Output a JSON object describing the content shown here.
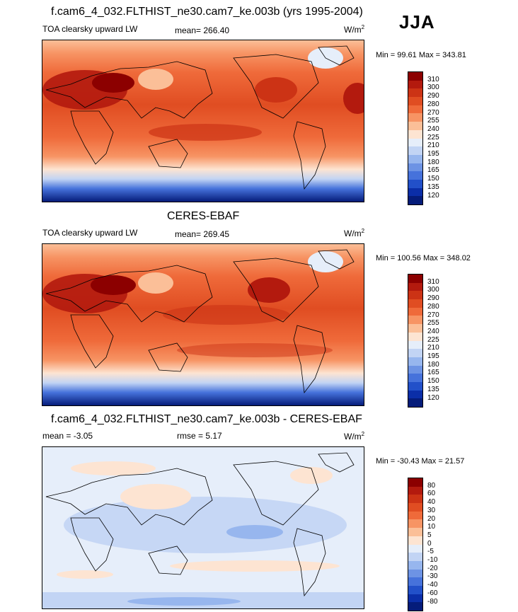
{
  "season": "JJA",
  "panels": [
    {
      "title": "f.cam6_4_032.FLTHIST_ne30.cam7_ke.003b (yrs 1995-2004)",
      "left_label": "TOA clearsky upward LW",
      "center_label": "mean= 266.40",
      "units_base": "W/m",
      "units_exp": "2",
      "minmax": "Min =  99.61 Max = 343.81",
      "colorbar": {
        "levels": [
          "310",
          "300",
          "290",
          "280",
          "270",
          "255",
          "240",
          "225",
          "210",
          "195",
          "180",
          "165",
          "150",
          "135",
          "120"
        ],
        "colors": [
          "#8c0000",
          "#b31a0e",
          "#cc3315",
          "#e04d22",
          "#ef6a3a",
          "#f79464",
          "#fbbf98",
          "#fde4d2",
          "#e6eefa",
          "#c2d4f4",
          "#97b6ee",
          "#6d93e4",
          "#4672db",
          "#2250c9",
          "#0b2ea8",
          "#051c7a"
        ]
      }
    },
    {
      "title": "CERES-EBAF",
      "left_label": "TOA clearsky upward LW",
      "center_label": "mean= 269.45",
      "units_base": "W/m",
      "units_exp": "2",
      "minmax": "Min = 100.56 Max = 348.02",
      "colorbar": {
        "levels": [
          "310",
          "300",
          "290",
          "280",
          "270",
          "255",
          "240",
          "225",
          "210",
          "195",
          "180",
          "165",
          "150",
          "135",
          "120"
        ],
        "colors": [
          "#8c0000",
          "#b31a0e",
          "#cc3315",
          "#e04d22",
          "#ef6a3a",
          "#f79464",
          "#fbbf98",
          "#fde4d2",
          "#e6eefa",
          "#c2d4f4",
          "#97b6ee",
          "#6d93e4",
          "#4672db",
          "#2250c9",
          "#0b2ea8",
          "#051c7a"
        ]
      }
    },
    {
      "title": "f.cam6_4_032.FLTHIST_ne30.cam7_ke.003b - CERES-EBAF",
      "left_label": "mean =  -3.05",
      "center_label": "rmse =   5.17",
      "units_base": "W/m",
      "units_exp": "2",
      "minmax": "Min = -30.43 Max =  21.57",
      "colorbar": {
        "levels": [
          "80",
          "60",
          "40",
          "30",
          "20",
          "10",
          "5",
          "0",
          "-5",
          "-10",
          "-20",
          "-30",
          "-40",
          "-60",
          "-80"
        ],
        "colors": [
          "#8c0000",
          "#b31a0e",
          "#cc3315",
          "#e04d22",
          "#ef6a3a",
          "#f79464",
          "#fbbf98",
          "#fde4d2",
          "#e6eefa",
          "#c2d4f4",
          "#97b6ee",
          "#6d93e4",
          "#4672db",
          "#2250c9",
          "#0b2ea8",
          "#051c7a"
        ]
      }
    }
  ]
}
